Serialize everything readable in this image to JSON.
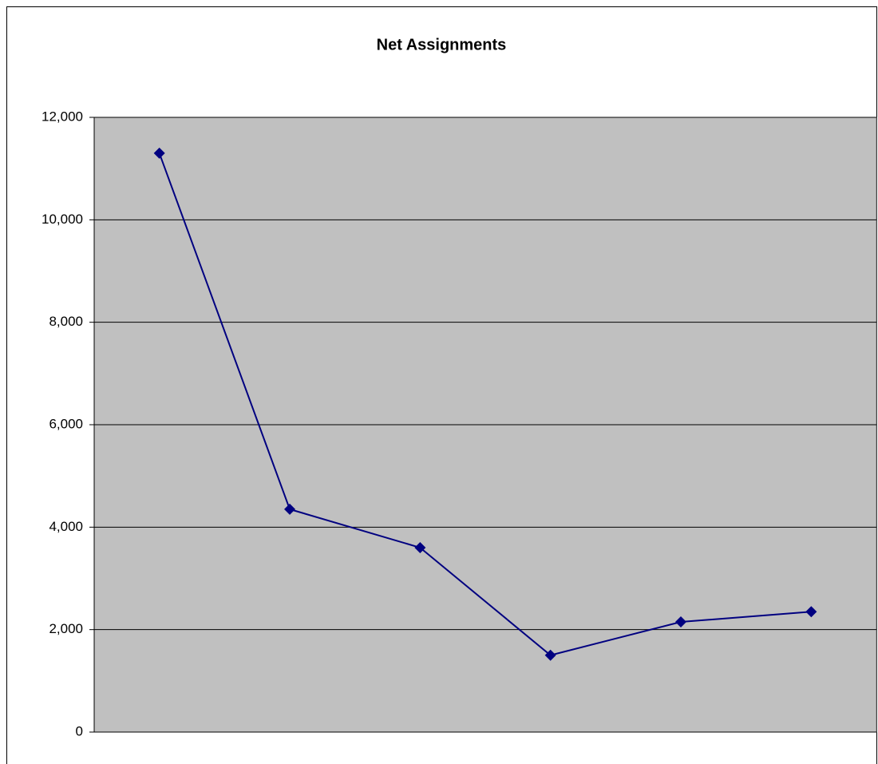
{
  "chart_data": {
    "type": "line",
    "title": "Net Assignments",
    "categories": [
      null,
      null,
      null,
      null,
      null,
      null
    ],
    "series": [
      {
        "name": null,
        "color": "#000080",
        "values": [
          11300,
          4350,
          3600,
          1500,
          2150,
          2350
        ]
      }
    ],
    "ylim": [
      0,
      12000
    ],
    "yticks": [
      0,
      {
        "value": 2000,
        "label": "2,000"
      },
      {
        "value": 4000,
        "label": "4,000"
      },
      {
        "value": 6000,
        "label": "6,000"
      },
      {
        "value": 8000,
        "label": "8,000"
      },
      {
        "value": 10000,
        "label": "10,000"
      },
      {
        "value": 12000,
        "label": "12,000"
      }
    ],
    "grid": true,
    "plot_background": "#c0c0c0"
  }
}
